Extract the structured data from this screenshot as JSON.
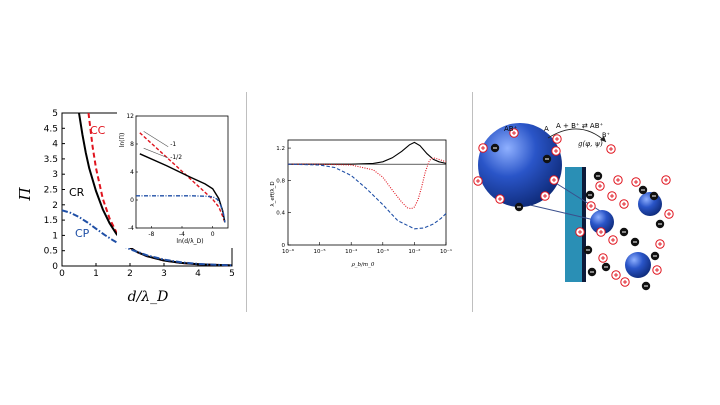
{
  "chart_data": [
    {
      "type": "line",
      "xlabel": "d/λ_D",
      "ylabel": "Π",
      "xlim": [
        0,
        5
      ],
      "ylim": [
        0,
        5
      ],
      "x_ticks": [
        "0",
        "1",
        "2",
        "3",
        "4",
        "5"
      ],
      "y_ticks": [
        "0",
        "0.5",
        "1",
        "1.5",
        "2",
        "2.5",
        "3",
        "3.5",
        "4",
        "4.5",
        "5"
      ],
      "series": [
        {
          "name": "CC",
          "color": "#e0141e",
          "style": "dashed",
          "x": [
            0.78,
            0.9,
            1.0,
            1.2,
            1.4,
            1.6,
            1.8,
            2.0,
            2.2,
            2.5,
            3.0,
            3.5,
            4.0,
            4.5,
            5.0
          ],
          "y": [
            5.0,
            3.9,
            3.2,
            2.2,
            1.55,
            1.1,
            0.8,
            0.6,
            0.46,
            0.32,
            0.18,
            0.1,
            0.06,
            0.035,
            0.02
          ]
        },
        {
          "name": "CR",
          "color": "#000000",
          "style": "solid",
          "x": [
            0.5,
            0.6,
            0.7,
            0.8,
            1.0,
            1.2,
            1.4,
            1.6,
            1.8,
            2.0,
            2.2,
            2.5,
            3.0,
            3.5,
            4.0,
            4.5,
            5.0
          ],
          "y": [
            5.0,
            4.3,
            3.7,
            3.2,
            2.45,
            1.85,
            1.4,
            1.05,
            0.8,
            0.6,
            0.46,
            0.32,
            0.18,
            0.1,
            0.06,
            0.035,
            0.02
          ]
        },
        {
          "name": "CP",
          "color": "#1f4fa6",
          "style": "dashdot",
          "x": [
            0,
            0.25,
            0.5,
            0.75,
            1.0,
            1.25,
            1.5,
            1.75,
            2.0,
            2.5,
            3.0,
            3.5,
            4.0,
            4.5,
            5.0
          ],
          "y": [
            1.82,
            1.74,
            1.6,
            1.42,
            1.22,
            1.02,
            0.84,
            0.68,
            0.55,
            0.35,
            0.21,
            0.12,
            0.07,
            0.04,
            0.02
          ]
        }
      ],
      "inset": {
        "xlabel": "ln(d/λ_D)",
        "ylabel": "ln(Π)",
        "xlim": [
          -10,
          2
        ],
        "ylim": [
          -4,
          12
        ],
        "x_ticks": [
          "-8",
          "-4",
          "0"
        ],
        "y_ticks": [
          "-4",
          "0",
          "4",
          "8",
          "12"
        ],
        "annotations": [
          "-1",
          "-1/2"
        ],
        "series": [
          {
            "name": "CC",
            "x": [
              -9.5,
              -6,
              -3,
              -1,
              0,
              0.8,
              1.3,
              1.6
            ],
            "y": [
              9.6,
              6.1,
              3.1,
              1.1,
              0.1,
              -1.0,
              -2.3,
              -3.2
            ]
          },
          {
            "name": "CR",
            "x": [
              -9.5,
              -6,
              -3,
              -1,
              0,
              0.8,
              1.3,
              1.6
            ],
            "y": [
              6.6,
              4.9,
              3.3,
              2.3,
              1.6,
              0.2,
              -1.5,
              -3.2
            ]
          },
          {
            "name": "CP",
            "x": [
              -10,
              -6,
              -3,
              -1,
              0,
              0.6,
              1.0,
              1.4,
              1.6
            ],
            "y": [
              0.6,
              0.6,
              0.6,
              0.55,
              0.45,
              0.1,
              -0.6,
              -1.9,
              -3.2
            ]
          }
        ],
        "ref_lines": [
          {
            "label": "-1",
            "x": [
              -9.0,
              -5.8
            ],
            "y": [
              9.8,
              7.6
            ]
          },
          {
            "label": "-1/2",
            "x": [
              -9.0,
              -5.8
            ],
            "y": [
              7.4,
              6.0
            ]
          }
        ]
      }
    },
    {
      "type": "line",
      "xlabel": "ρ_b/m_0",
      "ylabel": "λ_eff/λ_D",
      "x_scale": "log",
      "xlim": [
        1e-06,
        0.1
      ],
      "ylim": [
        0,
        1.3
      ],
      "x_ticks": [
        "10⁻⁶",
        "10⁻⁵",
        "10⁻⁴",
        "10⁻³",
        "10⁻²",
        "10⁻¹"
      ],
      "y_ticks": [
        "0",
        "0.4",
        "0.8",
        "1.2"
      ],
      "series": [
        {
          "name": "black-solid",
          "color": "#000000",
          "style": "solid",
          "x": [
            1e-06,
            1e-05,
            0.0001,
            0.0005,
            0.001,
            0.002,
            0.004,
            0.007,
            0.01,
            0.015,
            0.025,
            0.04,
            0.06,
            0.1
          ],
          "y": [
            1.0,
            1.0,
            1.0,
            1.01,
            1.03,
            1.08,
            1.16,
            1.24,
            1.27,
            1.23,
            1.13,
            1.06,
            1.03,
            1.01
          ]
        },
        {
          "name": "black-flat",
          "color": "#000000",
          "style": "solid",
          "x": [
            1e-06,
            0.1
          ],
          "y": [
            1.0,
            1.0
          ]
        },
        {
          "name": "red-dotted",
          "color": "#e0141e",
          "style": "dotted",
          "x": [
            1e-06,
            1e-05,
            0.0001,
            0.0005,
            0.001,
            0.002,
            0.004,
            0.006,
            0.008,
            0.01,
            0.013,
            0.017,
            0.022,
            0.03,
            0.04,
            0.06,
            0.1
          ],
          "y": [
            1.0,
            1.0,
            0.99,
            0.93,
            0.84,
            0.68,
            0.53,
            0.46,
            0.45,
            0.47,
            0.56,
            0.72,
            0.9,
            1.05,
            1.08,
            1.06,
            1.03
          ]
        },
        {
          "name": "blue-dashed",
          "color": "#1f4fa6",
          "style": "dashed",
          "x": [
            1e-06,
            1e-05,
            3e-05,
            0.0001,
            0.0003,
            0.001,
            0.003,
            0.01,
            0.02,
            0.04,
            0.07,
            0.1
          ],
          "y": [
            1.0,
            0.99,
            0.96,
            0.86,
            0.7,
            0.5,
            0.3,
            0.2,
            0.21,
            0.26,
            0.33,
            0.39
          ]
        }
      ]
    }
  ],
  "labels": {
    "cc": "CC",
    "cr": "CR",
    "cp": "CP",
    "ab_top": "AB⁺",
    "a_label": "A",
    "reaction": "A + B⁺ ⇄ AB⁺",
    "b_label": "B⁺",
    "g_func": "g(φ, ψ)"
  },
  "colors": {
    "red": "#e0141e",
    "blue": "#1f4fa6",
    "sphere": "#2a55c8",
    "wall": "#2a8fb5"
  }
}
